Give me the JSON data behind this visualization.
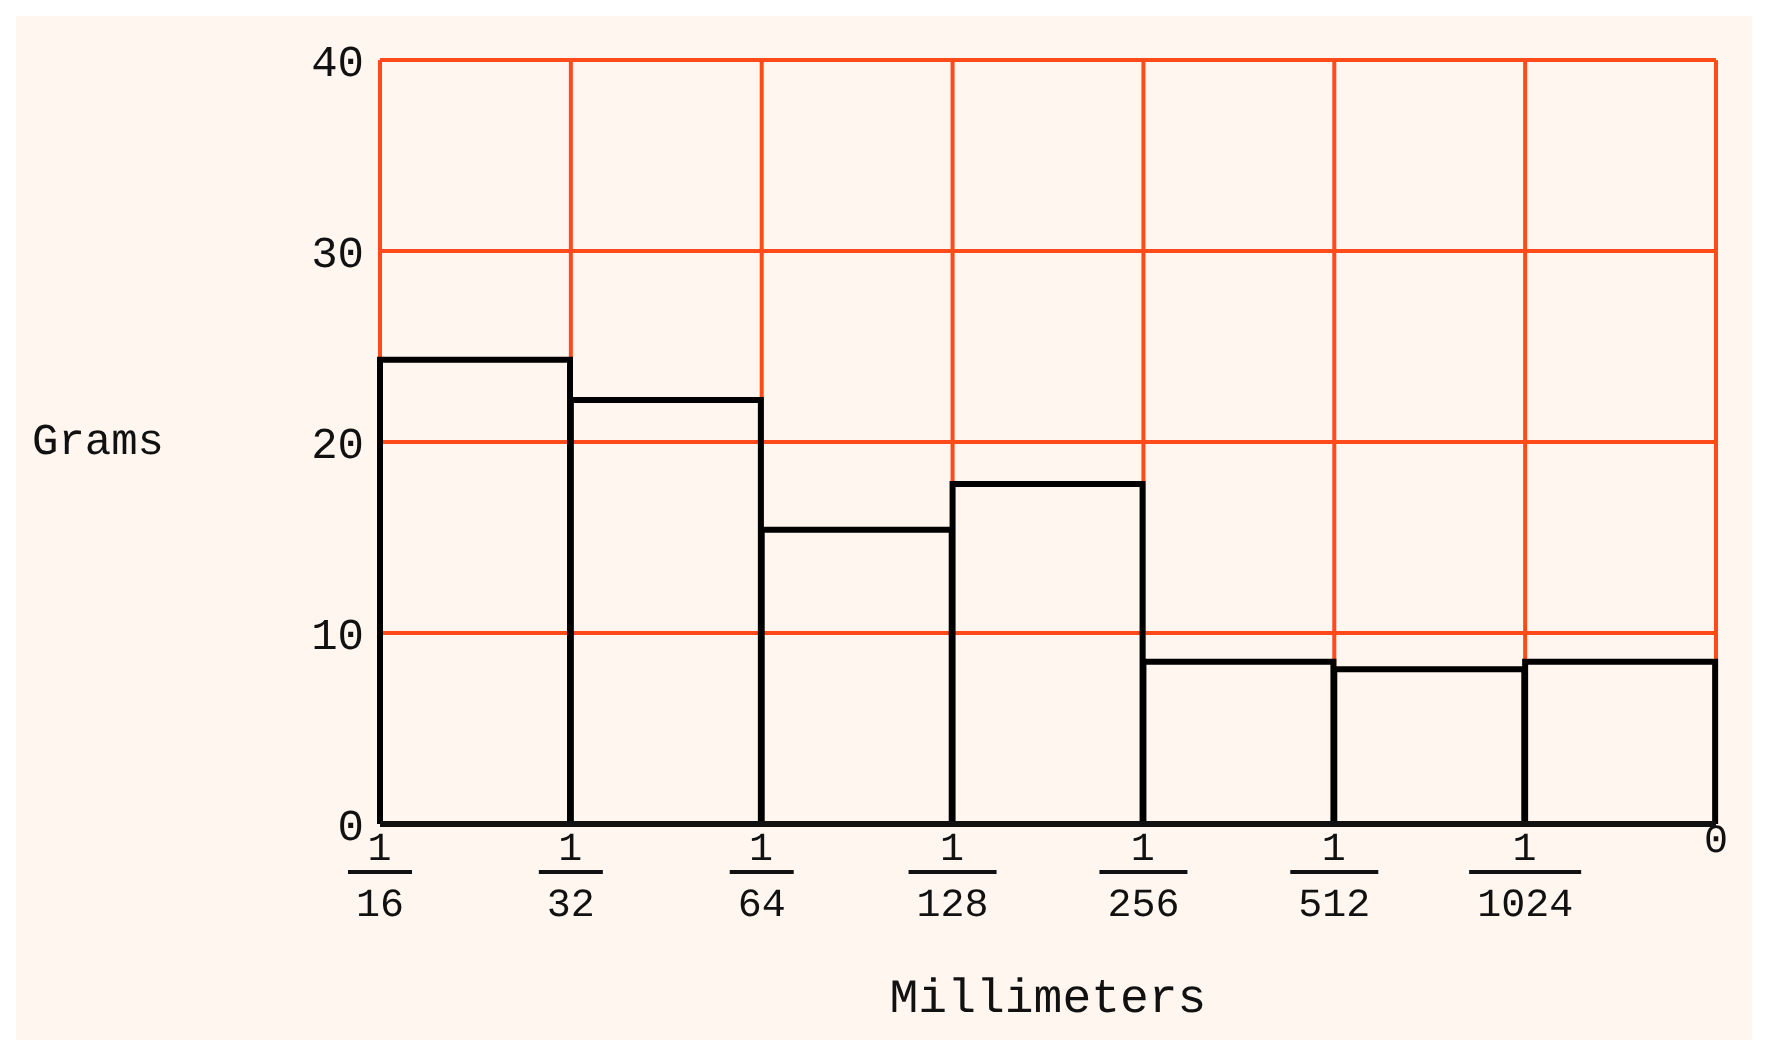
{
  "chart_data": {
    "type": "bar",
    "xlabel": "Millimeters",
    "ylabel": "Grams",
    "categories": [
      null,
      null,
      null,
      null,
      null,
      null,
      null
    ],
    "values": [
      24.3,
      22.2,
      15.4,
      17.8,
      8.5,
      8.1,
      8.5
    ],
    "color": "#000000",
    "annotations": [
      "1/16",
      "1/32",
      "1/64",
      "1/128",
      "1/256",
      "1/512",
      "1/1024",
      "0"
    ],
    "ylim": [
      0,
      40
    ],
    "yticks": [
      0,
      10,
      20,
      30,
      40
    ],
    "grid": true
  }
}
